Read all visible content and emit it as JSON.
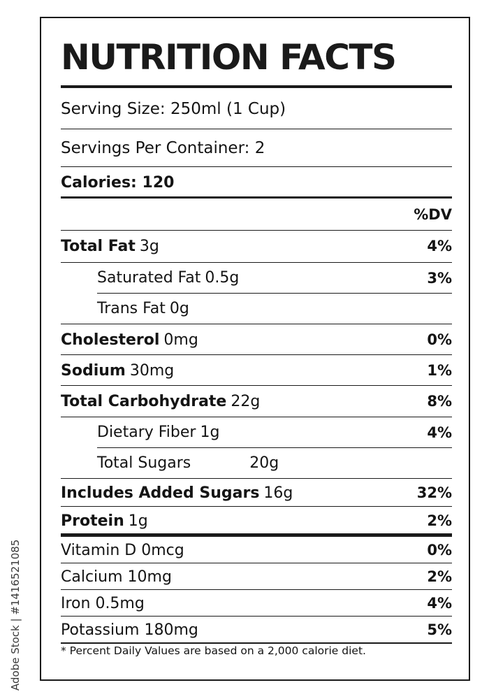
{
  "watermark": "Adobe Stock | #1416521085",
  "title": "NUTRITION FACTS",
  "serving_size": "Serving Size: 250ml (1 Cup)",
  "servings_per_container": "Servings Per Container: 2",
  "calories": "Calories: 120",
  "dv_header": "%DV",
  "nutrients": {
    "total_fat": {
      "label": "Total Fat",
      "amount": "3g",
      "dv": "4%"
    },
    "saturated_fat": {
      "label": "Saturated Fat",
      "amount": "0.5g",
      "dv": "3%"
    },
    "trans_fat": {
      "label": "Trans Fat",
      "amount": "0g",
      "dv": ""
    },
    "cholesterol": {
      "label": "Cholesterol",
      "amount": "0mg",
      "dv": "0%"
    },
    "sodium": {
      "label": "Sodium",
      "amount": "30mg",
      "dv": "1%"
    },
    "total_carbohydrate": {
      "label": "Total Carbohydrate",
      "amount": "22g",
      "dv": "8%"
    },
    "dietary_fiber": {
      "label": "Dietary Fiber",
      "amount": "1g",
      "dv": "4%"
    },
    "total_sugars": {
      "label": "Total Sugars",
      "amount": "20g",
      "dv": ""
    },
    "added_sugars": {
      "label": "Includes Added Sugars",
      "amount": "16g",
      "dv": "32%"
    },
    "protein": {
      "label": "Protein",
      "amount": "1g",
      "dv": "2%"
    }
  },
  "vitamins": {
    "vitamin_d": {
      "label": "Vitamin D 0mcg",
      "dv": "0%"
    },
    "calcium": {
      "label": "Calcium 10mg",
      "dv": "2%"
    },
    "iron": {
      "label": "Iron 0.5mg",
      "dv": "4%"
    },
    "potassium": {
      "label": "Potassium 180mg",
      "dv": "5%"
    }
  },
  "footnote": "* Percent Daily Values are based on a 2,000 calorie diet."
}
